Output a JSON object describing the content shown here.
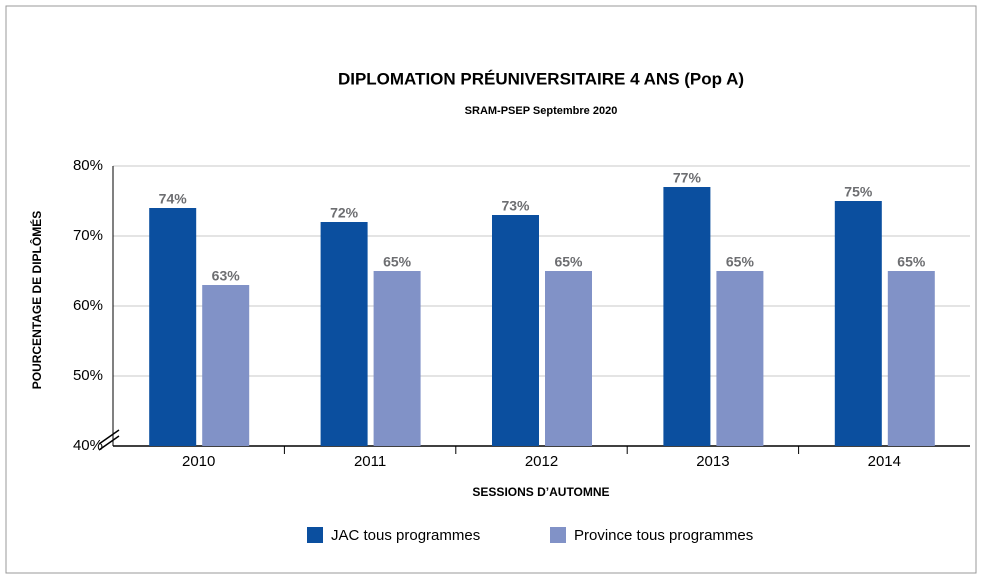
{
  "chart_data": {
    "type": "bar",
    "title": "DIPLOMATION PRÉUNIVERSITAIRE 4 ANS (Pop A)",
    "subtitle": "SRAM-PSEP Septembre 2020",
    "x_label": "SESSIONS D’AUTOMNE",
    "y_label": "POURCENTAGE DE DIPLÔMÉS",
    "categories": [
      "2010",
      "2011",
      "2012",
      "2013",
      "2014"
    ],
    "series": [
      {
        "name": "JAC tous programmes",
        "color": "#0b4f9f",
        "values": [
          74,
          72,
          73,
          77,
          75
        ],
        "value_labels": [
          "74%",
          "72%",
          "73%",
          "77%",
          "75%"
        ]
      },
      {
        "name": "Province tous programmes",
        "color": "#8192c7",
        "values": [
          63,
          65,
          65,
          65,
          65
        ],
        "value_labels": [
          "63%",
          "65%",
          "65%",
          "65%",
          "65%"
        ]
      }
    ],
    "ylim": [
      40,
      80
    ],
    "yticks": [
      {
        "value": 40,
        "label": "40%"
      },
      {
        "value": 50,
        "label": "50%"
      },
      {
        "value": 60,
        "label": "60%"
      },
      {
        "value": 70,
        "label": "70%"
      },
      {
        "value": 80,
        "label": "80%"
      }
    ],
    "grid": true
  }
}
